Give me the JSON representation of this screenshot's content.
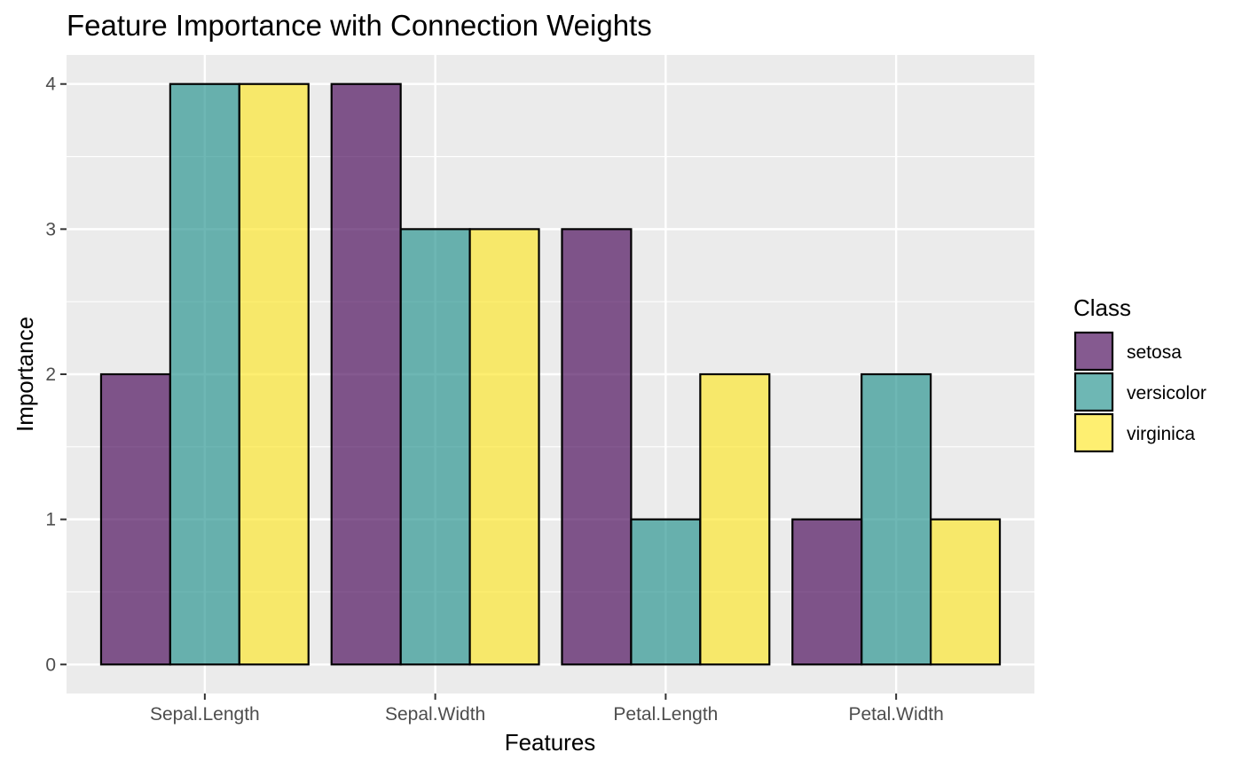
{
  "chart_data": {
    "type": "bar",
    "title": "Feature Importance with Connection Weights",
    "xlabel": "Features",
    "ylabel": "Importance",
    "categories": [
      "Sepal.Length",
      "Sepal.Width",
      "Petal.Length",
      "Petal.Width"
    ],
    "series": [
      {
        "name": "setosa",
        "values": [
          2,
          4,
          3,
          1
        ],
        "color": "#440154"
      },
      {
        "name": "versicolor",
        "values": [
          4,
          3,
          1,
          2
        ],
        "color": "#21908C"
      },
      {
        "name": "virginica",
        "values": [
          4,
          3,
          2,
          1
        ],
        "color": "#FDE725"
      }
    ],
    "ylim": [
      -0.2,
      4.2
    ],
    "yticks": [
      "0",
      "1",
      "2",
      "3",
      "4"
    ],
    "ytick_values": [
      0,
      1,
      2,
      3,
      4
    ],
    "legend": {
      "title": "Class",
      "position": "right"
    },
    "grid": true,
    "panel_background": "#EBEBEB",
    "bar_opacity": 0.65,
    "bar_outline": "#000000"
  }
}
